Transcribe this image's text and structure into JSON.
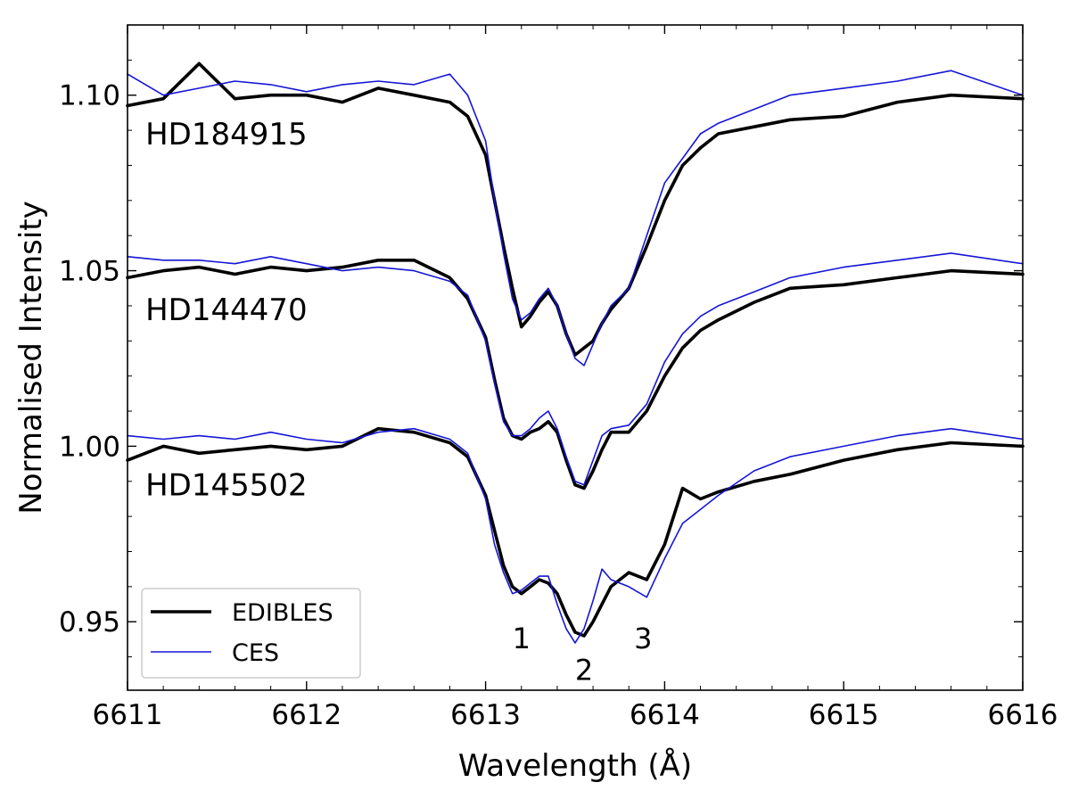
{
  "chart_data": {
    "type": "line",
    "xlabel": "Wavelength (Å)",
    "ylabel": "Normalised Intensity",
    "xlim": [
      6611,
      6616
    ],
    "ylim": [
      0.9305,
      1.12
    ],
    "x_ticks": [
      6611,
      6612,
      6613,
      6614,
      6615,
      6616
    ],
    "x_tick_labels": [
      "6611",
      "6612",
      "6613",
      "6614",
      "6615",
      "6616"
    ],
    "y_ticks": [
      0.95,
      1.0,
      1.05,
      1.1
    ],
    "y_tick_labels": [
      "0.95",
      "1.00",
      "1.05",
      "1.10"
    ],
    "grid": false,
    "legend_position": "bottom-left",
    "legend": [
      {
        "label": "EDIBLES",
        "color": "#000000"
      },
      {
        "label": "CES",
        "color": "#1515d6"
      }
    ],
    "profile_labels": [
      {
        "text": "HD184915",
        "x": 6611.1,
        "y": 1.089
      },
      {
        "text": "HD144470",
        "x": 6611.1,
        "y": 1.039
      },
      {
        "text": "HD145502",
        "x": 6611.1,
        "y": 0.989
      }
    ],
    "component_labels": [
      {
        "text": "1",
        "x": 6613.2,
        "y": 0.9455
      },
      {
        "text": "2",
        "x": 6613.55,
        "y": 0.9365
      },
      {
        "text": "3",
        "x": 6613.88,
        "y": 0.9455
      }
    ],
    "series": [
      {
        "name": "EDIBLES",
        "profile": "HD184915",
        "color": "#000000",
        "x": [
          6611.0,
          6611.2,
          6611.4,
          6611.6,
          6611.8,
          6612.0,
          6612.2,
          6612.4,
          6612.6,
          6612.8,
          6612.9,
          6613.0,
          6613.05,
          6613.1,
          6613.15,
          6613.2,
          6613.25,
          6613.3,
          6613.35,
          6613.4,
          6613.45,
          6613.5,
          6613.55,
          6613.6,
          6613.65,
          6613.7,
          6613.8,
          6613.9,
          6614.0,
          6614.1,
          6614.2,
          6614.3,
          6614.5,
          6614.7,
          6615.0,
          6615.3,
          6615.6,
          6616.0
        ],
        "y": [
          1.097,
          1.099,
          1.109,
          1.099,
          1.1,
          1.1,
          1.098,
          1.102,
          1.1,
          1.098,
          1.094,
          1.083,
          1.07,
          1.057,
          1.045,
          1.034,
          1.037,
          1.041,
          1.044,
          1.04,
          1.032,
          1.026,
          1.028,
          1.03,
          1.035,
          1.039,
          1.045,
          1.057,
          1.07,
          1.08,
          1.085,
          1.089,
          1.091,
          1.093,
          1.094,
          1.098,
          1.1,
          1.099
        ]
      },
      {
        "name": "CES",
        "profile": "HD184915",
        "color": "#1515d6",
        "x": [
          6611.0,
          6611.2,
          6611.4,
          6611.6,
          6611.8,
          6612.0,
          6612.2,
          6612.4,
          6612.6,
          6612.8,
          6612.9,
          6613.0,
          6613.05,
          6613.1,
          6613.15,
          6613.2,
          6613.25,
          6613.3,
          6613.35,
          6613.4,
          6613.45,
          6613.5,
          6613.55,
          6613.6,
          6613.65,
          6613.7,
          6613.8,
          6613.9,
          6614.0,
          6614.1,
          6614.2,
          6614.3,
          6614.5,
          6614.7,
          6615.0,
          6615.3,
          6615.6,
          6616.0
        ],
        "y": [
          1.106,
          1.1,
          1.102,
          1.104,
          1.103,
          1.101,
          1.103,
          1.104,
          1.103,
          1.106,
          1.1,
          1.087,
          1.07,
          1.055,
          1.042,
          1.036,
          1.038,
          1.042,
          1.045,
          1.04,
          1.032,
          1.025,
          1.023,
          1.029,
          1.035,
          1.04,
          1.045,
          1.06,
          1.075,
          1.082,
          1.089,
          1.092,
          1.096,
          1.1,
          1.102,
          1.104,
          1.107,
          1.1
        ]
      },
      {
        "name": "EDIBLES",
        "profile": "HD144470",
        "color": "#000000",
        "x": [
          6611.0,
          6611.2,
          6611.4,
          6611.6,
          6611.8,
          6612.0,
          6612.2,
          6612.4,
          6612.6,
          6612.8,
          6612.9,
          6613.0,
          6613.05,
          6613.1,
          6613.15,
          6613.2,
          6613.25,
          6613.3,
          6613.35,
          6613.4,
          6613.45,
          6613.5,
          6613.55,
          6613.6,
          6613.65,
          6613.7,
          6613.8,
          6613.9,
          6614.0,
          6614.1,
          6614.2,
          6614.3,
          6614.5,
          6614.7,
          6615.0,
          6615.3,
          6615.6,
          6616.0
        ],
        "y": [
          1.048,
          1.05,
          1.051,
          1.049,
          1.051,
          1.05,
          1.051,
          1.053,
          1.053,
          1.048,
          1.042,
          1.031,
          1.019,
          1.008,
          1.003,
          1.002,
          1.004,
          1.005,
          1.007,
          1.004,
          0.996,
          0.989,
          0.988,
          0.993,
          0.999,
          1.004,
          1.004,
          1.01,
          1.02,
          1.028,
          1.033,
          1.036,
          1.041,
          1.045,
          1.046,
          1.048,
          1.05,
          1.049
        ]
      },
      {
        "name": "CES",
        "profile": "HD144470",
        "color": "#1515d6",
        "x": [
          6611.0,
          6611.2,
          6611.4,
          6611.6,
          6611.8,
          6612.0,
          6612.2,
          6612.4,
          6612.6,
          6612.8,
          6612.9,
          6613.0,
          6613.05,
          6613.1,
          6613.15,
          6613.2,
          6613.25,
          6613.3,
          6613.35,
          6613.4,
          6613.45,
          6613.5,
          6613.55,
          6613.6,
          6613.65,
          6613.7,
          6613.8,
          6613.9,
          6614.0,
          6614.1,
          6614.2,
          6614.3,
          6614.5,
          6614.7,
          6615.0,
          6615.3,
          6615.6,
          6616.0
        ],
        "y": [
          1.054,
          1.053,
          1.053,
          1.052,
          1.054,
          1.052,
          1.05,
          1.051,
          1.05,
          1.047,
          1.043,
          1.03,
          1.018,
          1.007,
          1.003,
          1.003,
          1.005,
          1.008,
          1.01,
          1.005,
          0.997,
          0.99,
          0.989,
          0.996,
          1.003,
          1.005,
          1.006,
          1.012,
          1.024,
          1.032,
          1.037,
          1.04,
          1.044,
          1.048,
          1.051,
          1.053,
          1.055,
          1.052
        ]
      },
      {
        "name": "EDIBLES",
        "profile": "HD145502",
        "color": "#000000",
        "x": [
          6611.0,
          6611.2,
          6611.4,
          6611.6,
          6611.8,
          6612.0,
          6612.2,
          6612.4,
          6612.6,
          6612.8,
          6612.9,
          6613.0,
          6613.05,
          6613.1,
          6613.15,
          6613.2,
          6613.25,
          6613.3,
          6613.35,
          6613.4,
          6613.45,
          6613.5,
          6613.55,
          6613.6,
          6613.65,
          6613.7,
          6613.8,
          6613.9,
          6614.0,
          6614.1,
          6614.2,
          6614.3,
          6614.5,
          6614.7,
          6615.0,
          6615.3,
          6615.6,
          6616.0
        ],
        "y": [
          0.996,
          1.0,
          0.998,
          0.999,
          1.0,
          0.999,
          1.0,
          1.005,
          1.004,
          1.001,
          0.997,
          0.986,
          0.976,
          0.966,
          0.96,
          0.958,
          0.96,
          0.962,
          0.961,
          0.958,
          0.952,
          0.947,
          0.946,
          0.95,
          0.955,
          0.96,
          0.964,
          0.962,
          0.972,
          0.988,
          0.985,
          0.987,
          0.99,
          0.992,
          0.996,
          0.999,
          1.001,
          1.0
        ]
      },
      {
        "name": "CES",
        "profile": "HD145502",
        "color": "#1515d6",
        "x": [
          6611.0,
          6611.2,
          6611.4,
          6611.6,
          6611.8,
          6612.0,
          6612.2,
          6612.4,
          6612.6,
          6612.8,
          6612.9,
          6613.0,
          6613.05,
          6613.1,
          6613.15,
          6613.2,
          6613.25,
          6613.3,
          6613.35,
          6613.4,
          6613.45,
          6613.5,
          6613.55,
          6613.6,
          6613.65,
          6613.7,
          6613.8,
          6613.9,
          6614.0,
          6614.1,
          6614.2,
          6614.3,
          6614.5,
          6614.7,
          6615.0,
          6615.3,
          6615.6,
          6616.0
        ],
        "y": [
          1.003,
          1.002,
          1.003,
          1.002,
          1.004,
          1.002,
          1.001,
          1.004,
          1.005,
          1.002,
          0.998,
          0.985,
          0.972,
          0.964,
          0.958,
          0.959,
          0.961,
          0.963,
          0.963,
          0.955,
          0.948,
          0.944,
          0.948,
          0.956,
          0.965,
          0.962,
          0.96,
          0.957,
          0.968,
          0.978,
          0.982,
          0.986,
          0.993,
          0.997,
          1.0,
          1.003,
          1.005,
          1.002
        ]
      }
    ]
  }
}
